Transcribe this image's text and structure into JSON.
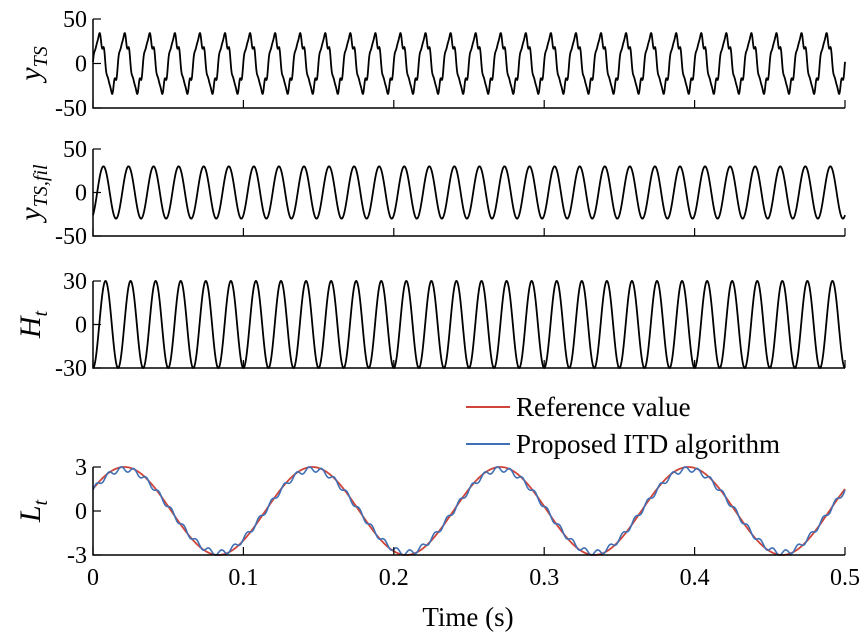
{
  "chart_data": [
    {
      "id": "yts",
      "type": "line",
      "ylabel_main": "y",
      "ylabel_sub": "TS",
      "ylim": [
        -50,
        50
      ],
      "yticks": [
        50,
        0,
        -50
      ],
      "xlim": [
        0,
        0.5
      ],
      "signal": {
        "description_free": true,
        "frequency_hz": 60,
        "amplitude": 30,
        "phase_deg": 0
      },
      "series": [
        {
          "color": "#000000",
          "signal": {
            "frequency_hz": 60,
            "amplitude": 30,
            "phase_deg": 0,
            "noise": 4
          }
        }
      ]
    },
    {
      "id": "ytsfil",
      "type": "line",
      "ylabel_main": "y",
      "ylabel_sub": "TS,fil",
      "ylim": [
        -50,
        50
      ],
      "yticks": [
        50,
        0,
        -50
      ],
      "xlim": [
        0,
        0.5
      ],
      "series": [
        {
          "color": "#000000",
          "signal": {
            "frequency_hz": 60,
            "amplitude": 30,
            "phase_deg": -60,
            "noise": 0
          }
        }
      ]
    },
    {
      "id": "ht",
      "type": "line",
      "ylabel_main": "H",
      "ylabel_sub": "t",
      "ylim": [
        -30,
        30
      ],
      "yticks": [
        30,
        0,
        -30
      ],
      "xlim": [
        0,
        0.5
      ],
      "series": [
        {
          "color": "#000000",
          "signal": {
            "frequency_hz": 60,
            "amplitude": 30,
            "phase_deg": -90,
            "noise": 0
          }
        }
      ]
    },
    {
      "id": "lt",
      "type": "line",
      "ylabel_main": "L",
      "ylabel_sub": "t",
      "ylim": [
        -3,
        3
      ],
      "yticks": [
        3,
        0,
        -3
      ],
      "xlim": [
        0,
        0.5
      ],
      "xticks": [
        "0",
        "0.1",
        "0.2",
        "0.3",
        "0.4",
        "0.5"
      ],
      "xlabel": "Time (s)",
      "legend_position": "top-right",
      "series": [
        {
          "name": "Reference value",
          "color": "#d0453a",
          "signal": {
            "frequency_hz": 8,
            "amplitude": 3,
            "phase_deg": 30,
            "noise": 0
          }
        },
        {
          "name": "Proposed ITD algorithm",
          "color": "#3f6fb5",
          "signal": {
            "frequency_hz": 8,
            "amplitude": 2.85,
            "phase_deg": 30,
            "ripple": 0.18
          }
        }
      ]
    }
  ]
}
